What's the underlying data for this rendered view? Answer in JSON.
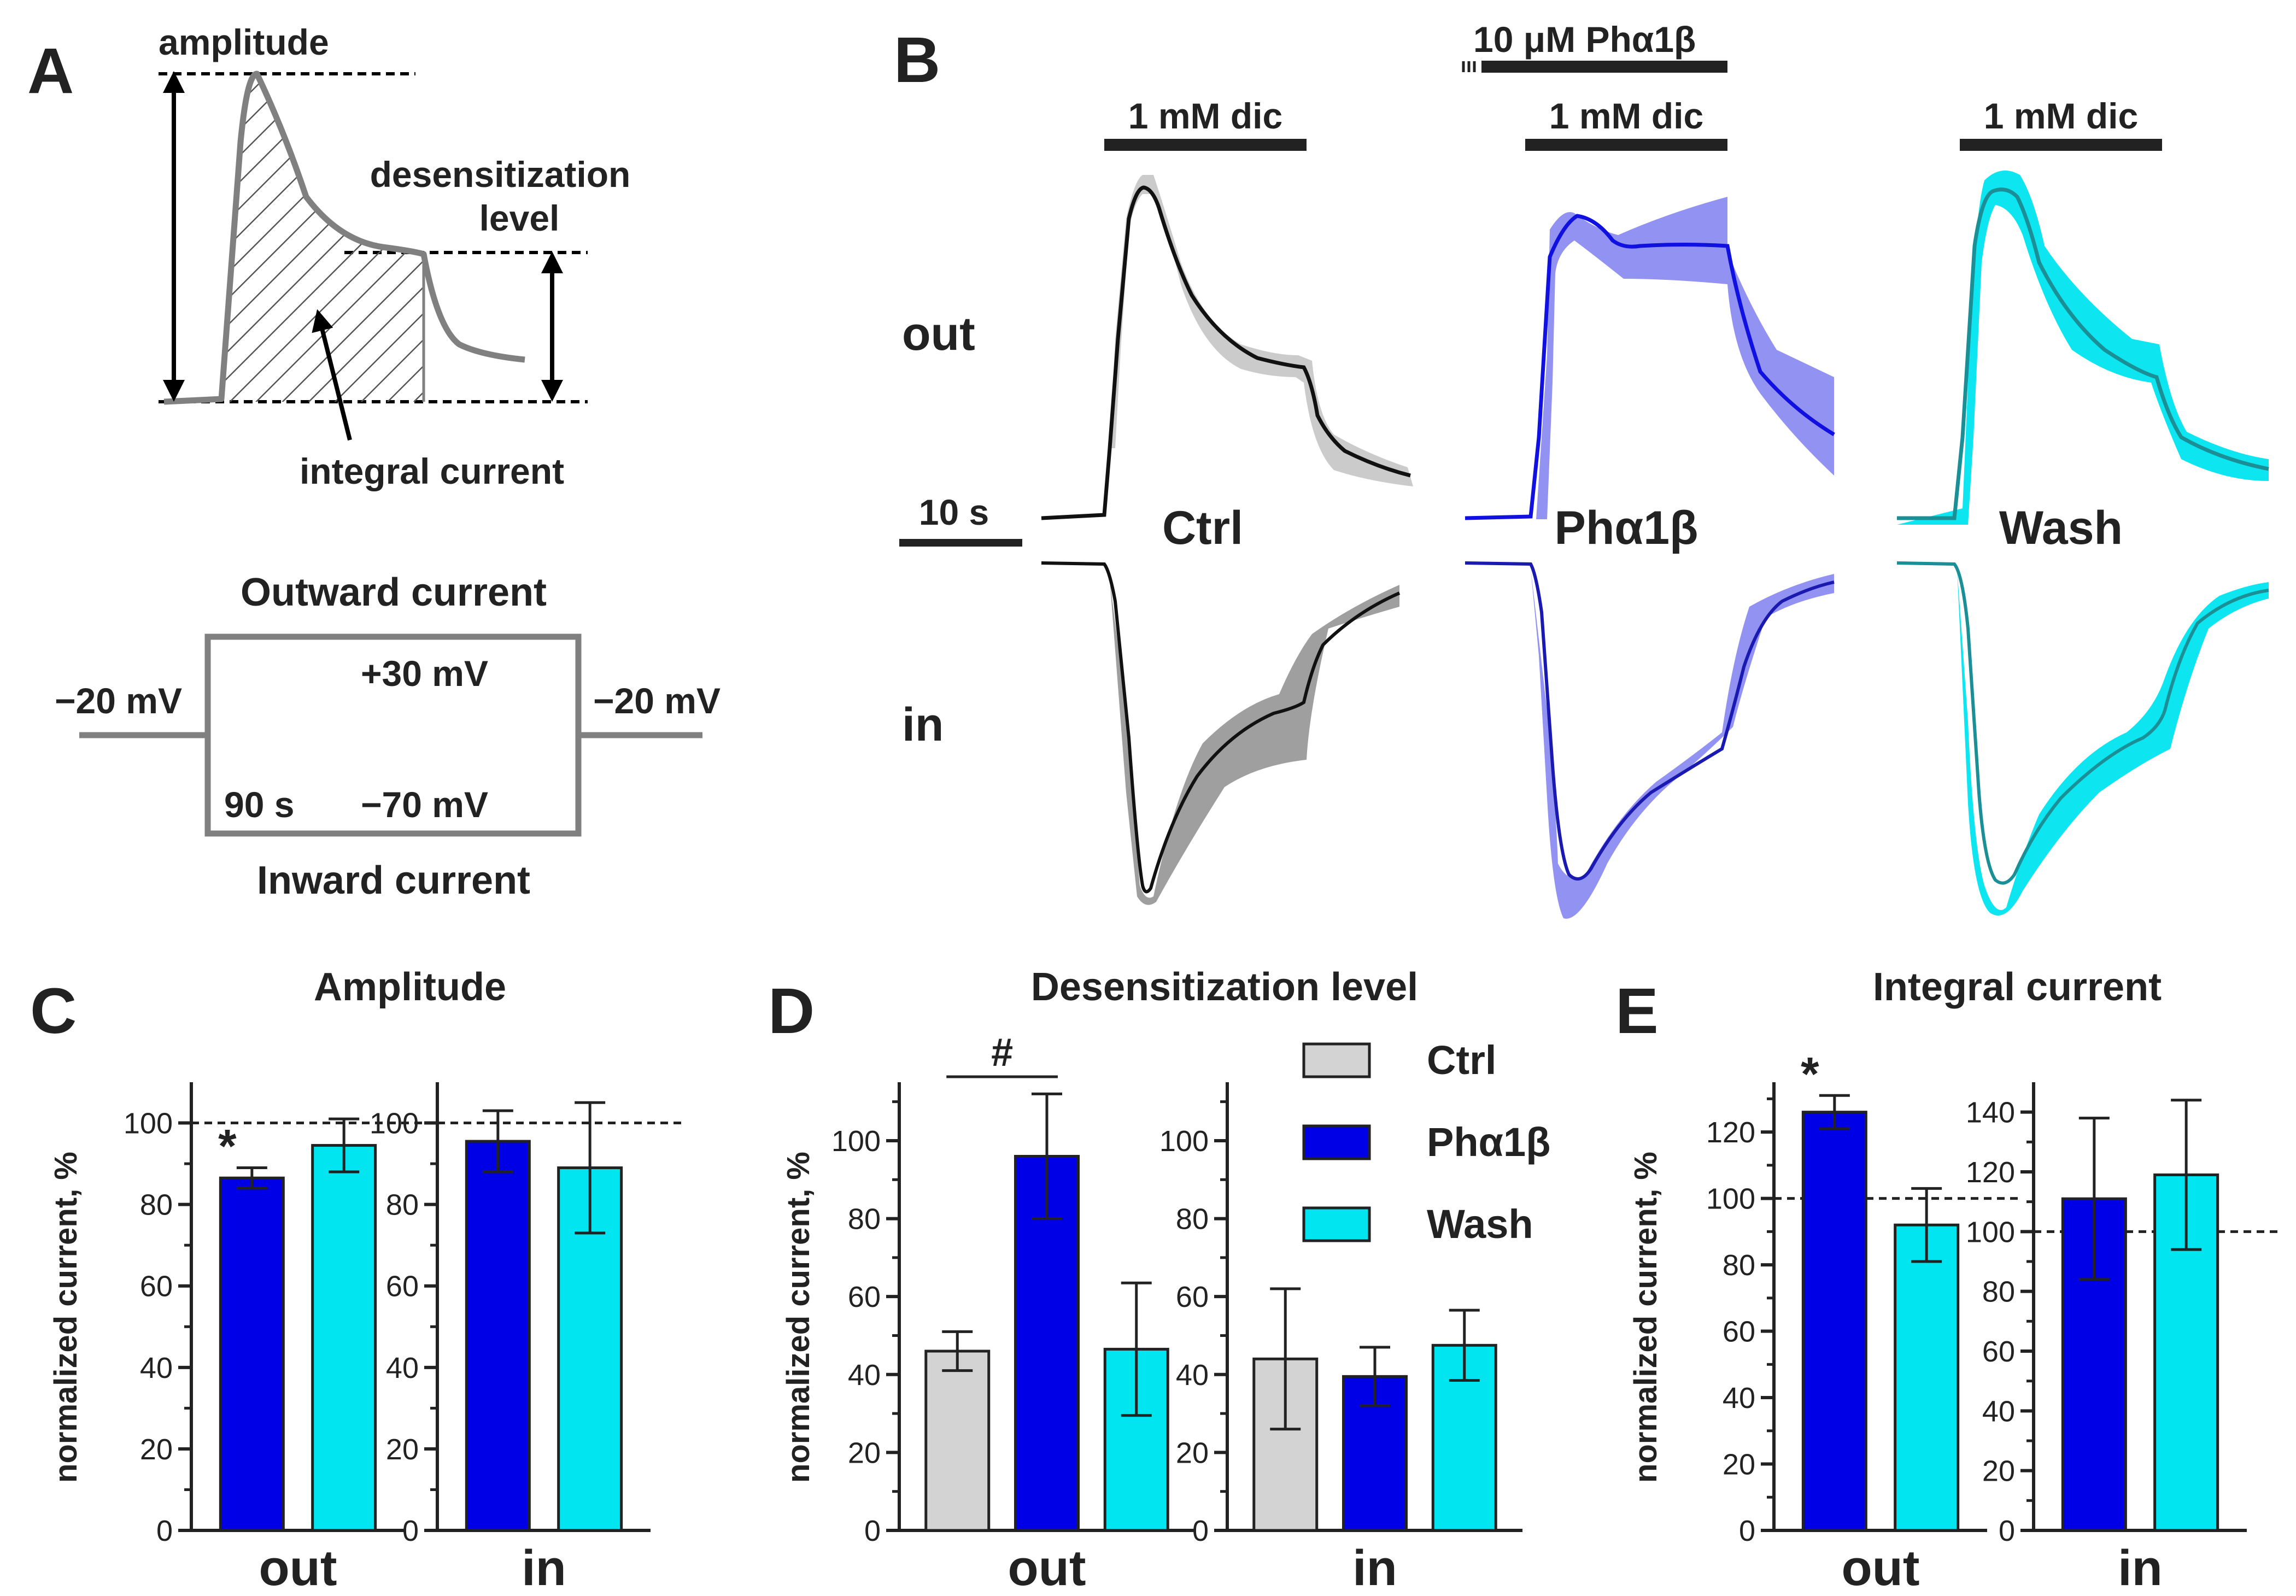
{
  "colors": {
    "ctrl": "#d3d3d3",
    "pha": "#0000e6",
    "wash": "#00e5f0",
    "wash_trace": "#1a8f96",
    "ctrl_band": "#9a9a9a",
    "pha_band": "#8080f0",
    "wash_band": "#00e5f0",
    "schematic": "#808080"
  },
  "panel_a": {
    "label": "A",
    "amplitude": "amplitude",
    "desens_line1": "desensitization",
    "desens_line2": "level",
    "integral": "integral current",
    "outward": "Outward current",
    "inward": "Inward current",
    "hold_left": "−20 mV",
    "hold_right": "−20 mV",
    "plus30": "+30 mV",
    "minus70": "−70 mV",
    "duration": "90 s"
  },
  "panel_b": {
    "label": "B",
    "drug": "10 μM Phα1β",
    "dic": "1 mM dic",
    "out": "out",
    "in": "in",
    "scale": "10 s",
    "conditions": [
      "Ctrl",
      "Phα1β",
      "Wash"
    ]
  },
  "legend": {
    "items": [
      "Ctrl",
      "Phα1β",
      "Wash"
    ]
  },
  "chart_data": [
    {
      "panel": "C",
      "title": "Amplitude",
      "type": "bar",
      "ylabel": "normalized current, %",
      "subplots": [
        {
          "category": "out",
          "ylim": [
            0,
            110
          ],
          "ticks": [
            0,
            20,
            40,
            60,
            80,
            100
          ],
          "ref_line": 100,
          "series": [
            {
              "name": "Phα1β",
              "value": 86.5,
              "error": 2.5
            },
            {
              "name": "Wash",
              "value": 94.5,
              "error": 6.5
            }
          ],
          "annotations": [
            {
              "text": "*",
              "over": "Phα1β"
            }
          ]
        },
        {
          "category": "in",
          "ylim": [
            0,
            110
          ],
          "ticks": [
            0,
            20,
            40,
            60,
            80,
            100
          ],
          "ref_line": 100,
          "series": [
            {
              "name": "Phα1β",
              "value": 95.5,
              "error": 7.5
            },
            {
              "name": "Wash",
              "value": 89,
              "error": 16
            }
          ],
          "annotations": []
        }
      ]
    },
    {
      "panel": "D",
      "title": "Desensitization level",
      "type": "bar",
      "ylabel": "normalized current, %",
      "subplots": [
        {
          "category": "out",
          "ylim": [
            0,
            115
          ],
          "ticks": [
            0,
            20,
            40,
            60,
            80,
            100
          ],
          "ref_line": null,
          "series": [
            {
              "name": "Ctrl",
              "value": 46,
              "error": 5
            },
            {
              "name": "Phα1β",
              "value": 96,
              "error": 16
            },
            {
              "name": "Wash",
              "value": 46.5,
              "error": 17
            }
          ],
          "annotations": [
            {
              "text": "#",
              "between": [
                "Ctrl",
                "Phα1β"
              ]
            }
          ]
        },
        {
          "category": "in",
          "ylim": [
            0,
            115
          ],
          "ticks": [
            0,
            20,
            40,
            60,
            80,
            100
          ],
          "ref_line": null,
          "series": [
            {
              "name": "Ctrl",
              "value": 44,
              "error": 18
            },
            {
              "name": "Phα1β",
              "value": 39.5,
              "error": 7.5
            },
            {
              "name": "Wash",
              "value": 47.5,
              "error": 9
            }
          ],
          "annotations": []
        }
      ]
    },
    {
      "panel": "E",
      "title": "Integral current",
      "type": "bar",
      "ylabel": "normalized current, %",
      "subplots": [
        {
          "category": "out",
          "ylim": [
            0,
            135
          ],
          "ticks": [
            0,
            20,
            40,
            60,
            80,
            100,
            120
          ],
          "ref_line": 100,
          "series": [
            {
              "name": "Phα1β",
              "value": 126,
              "error": 5
            },
            {
              "name": "Wash",
              "value": 92,
              "error": 11
            }
          ],
          "annotations": [
            {
              "text": "*",
              "over": "Phα1β"
            }
          ]
        },
        {
          "category": "in",
          "ylim": [
            0,
            150
          ],
          "ticks": [
            0,
            20,
            40,
            60,
            80,
            100,
            120,
            140
          ],
          "ref_line": 100,
          "series": [
            {
              "name": "Phα1β",
              "value": 111,
              "error": 27
            },
            {
              "name": "Wash",
              "value": 119,
              "error": 25
            }
          ],
          "annotations": []
        }
      ]
    }
  ]
}
